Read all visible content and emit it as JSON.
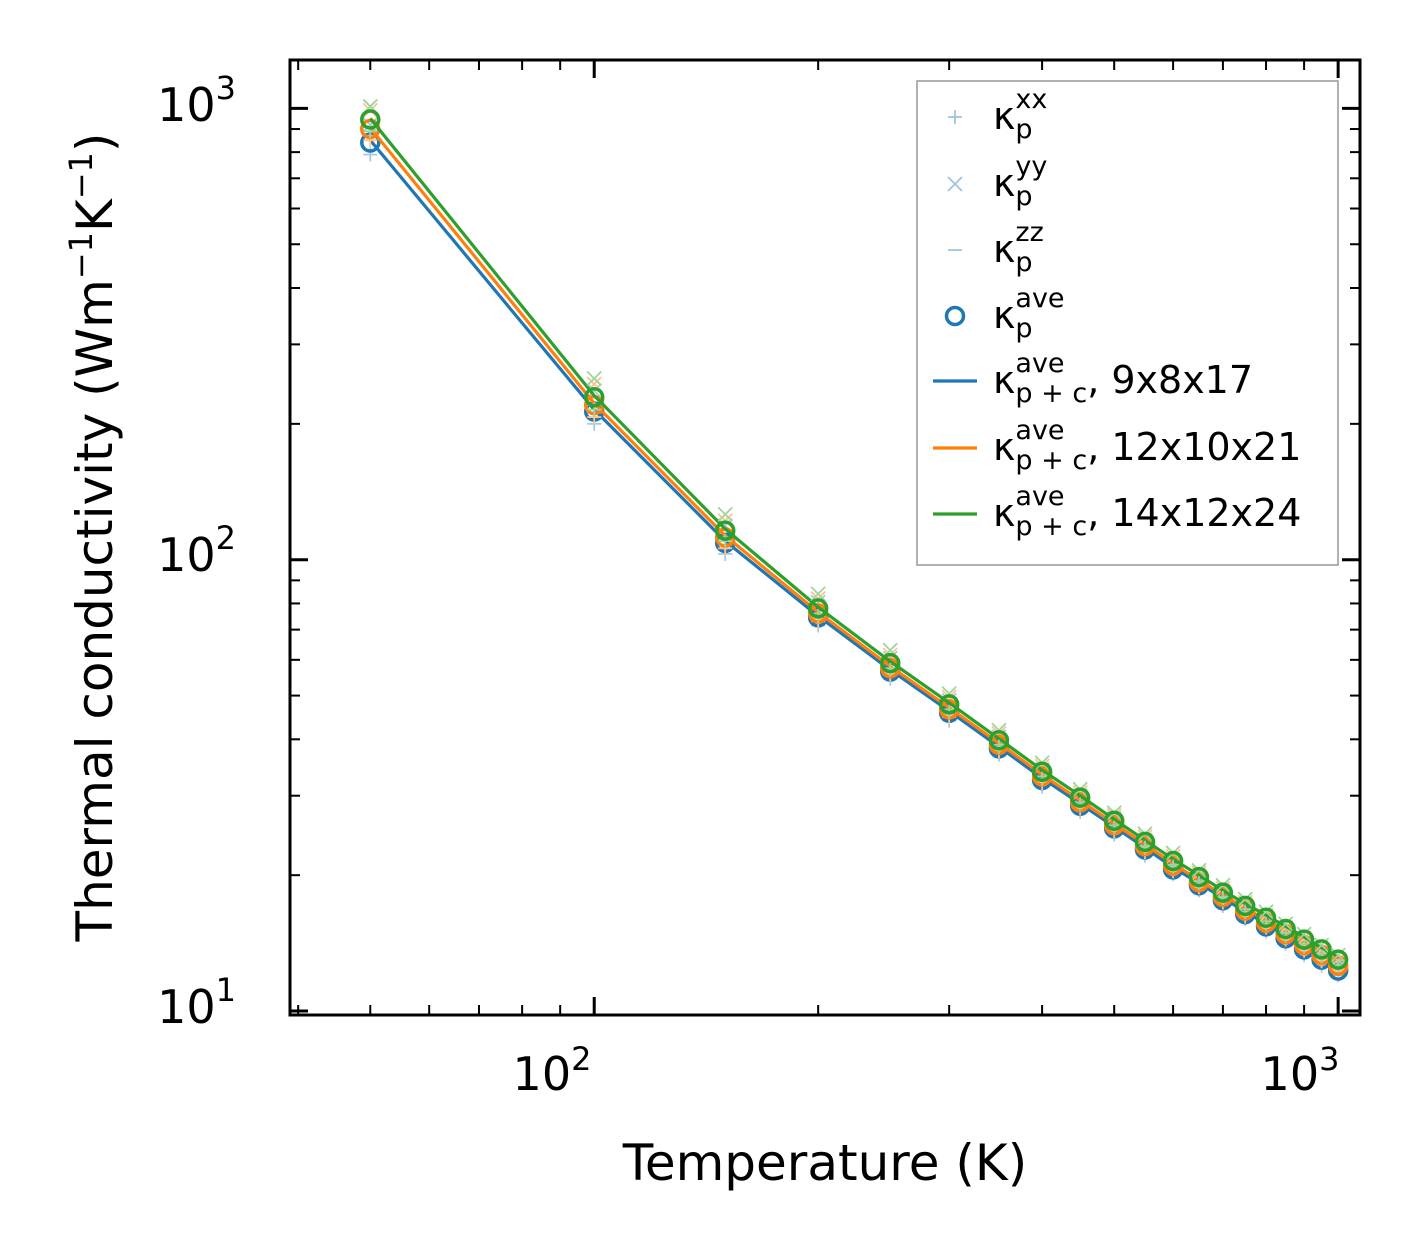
{
  "chart_data": {
    "type": "line",
    "scale": "log-log",
    "xlabel": "Temperature (K)",
    "ylabel": "Thermal conductivity (Wm⁻¹K⁻¹)",
    "ylabel_parts": {
      "base": "Thermal conductivity (Wm",
      "exp1": "−1",
      "mid": "K",
      "exp2": "−1",
      "end": ")"
    },
    "xlim": [
      39,
      1070
    ],
    "ylim": [
      9.8,
      1280
    ],
    "xticks": [
      {
        "base": "10",
        "exp": "2",
        "value": 100
      },
      {
        "base": "10",
        "exp": "3",
        "value": 1000
      }
    ],
    "yticks": [
      {
        "base": "10",
        "exp": "1",
        "value": 10
      },
      {
        "base": "10",
        "exp": "2",
        "value": 100
      },
      {
        "base": "10",
        "exp": "3",
        "value": 1000
      }
    ],
    "x": [
      50,
      100,
      150,
      200,
      250,
      300,
      350,
      400,
      450,
      500,
      550,
      600,
      650,
      700,
      750,
      800,
      850,
      900,
      950,
      1000
    ],
    "legend_position": "top-right",
    "legend": [
      {
        "kappa": "κ",
        "sub": "p",
        "sup": "xx",
        "suffix": "",
        "marker": "plus",
        "color": "#9ec4e0"
      },
      {
        "kappa": "κ",
        "sub": "p",
        "sup": "yy",
        "suffix": "",
        "marker": "x",
        "color": "#9ec4e0"
      },
      {
        "kappa": "κ",
        "sub": "p",
        "sup": "zz",
        "suffix": "",
        "marker": "hline",
        "color": "#9ec4e0"
      },
      {
        "kappa": "κ",
        "sub": "p",
        "sup": "ave",
        "suffix": "",
        "marker": "circle",
        "color": "#1f77b4"
      },
      {
        "kappa": "κ",
        "sub": "p + c",
        "sup": "ave",
        "suffix": ", 9x8x17",
        "marker": "line",
        "color": "#1f77b4"
      },
      {
        "kappa": "κ",
        "sub": "p + c",
        "sup": "ave",
        "suffix": ", 12x10x21",
        "marker": "line",
        "color": "#ff7f0e"
      },
      {
        "kappa": "κ",
        "sub": "p + c",
        "sup": "ave",
        "suffix": ", 14x12x24",
        "marker": "line",
        "color": "#2ca02c"
      }
    ],
    "series": [
      {
        "name": "9x8x17",
        "color": "#1f77b4",
        "kp_ave": [
          840,
          213,
          109,
          74.5,
          56.5,
          45.8,
          38.2,
          32.5,
          28.5,
          25.4,
          22.8,
          20.6,
          19.0,
          17.6,
          16.4,
          15.4,
          14.5,
          13.7,
          13.0,
          12.3
        ],
        "kp_xx": [
          790,
          200,
          103,
          71.5,
          54.5,
          44.0,
          37.0,
          31.4,
          27.6,
          24.6,
          22.1,
          20.1,
          18.5,
          17.1,
          16.0,
          15.0,
          14.1,
          13.3,
          12.6,
          12.0
        ],
        "kp_yy": [
          920,
          237,
          119,
          80.5,
          60.5,
          48.8,
          40.5,
          34.3,
          30.0,
          26.7,
          23.9,
          21.6,
          19.9,
          18.4,
          17.1,
          16.0,
          15.1,
          14.2,
          13.5,
          12.8
        ],
        "kp_zz": [
          810,
          205,
          105,
          72.5,
          55.0,
          44.6,
          37.4,
          31.8,
          27.9,
          24.9,
          22.4,
          20.3,
          18.7,
          17.3,
          16.2,
          15.2,
          14.3,
          13.5,
          12.8,
          12.2
        ],
        "kpc_ave": [
          850,
          215,
          110,
          75.0,
          57.0,
          46.2,
          38.5,
          32.8,
          28.8,
          25.6,
          23.0,
          20.8,
          19.2,
          17.8,
          16.6,
          15.6,
          14.7,
          13.9,
          13.2,
          12.5
        ]
      },
      {
        "name": "12x10x21",
        "color": "#ff7f0e",
        "kp_ave": [
          900,
          220,
          112,
          76.0,
          57.5,
          46.6,
          38.9,
          33.1,
          29.0,
          25.8,
          23.2,
          21.0,
          19.3,
          17.9,
          16.7,
          15.7,
          14.8,
          14.0,
          13.3,
          12.6
        ],
        "kp_xx": [
          850,
          207,
          106,
          73.0,
          55.5,
          44.8,
          37.6,
          32.0,
          28.1,
          25.0,
          22.5,
          20.4,
          18.8,
          17.4,
          16.2,
          15.3,
          14.4,
          13.6,
          12.9,
          12.3
        ],
        "kp_yy": [
          990,
          245,
          122,
          82.0,
          61.5,
          49.6,
          41.2,
          34.9,
          30.5,
          27.1,
          24.3,
          22.0,
          20.2,
          18.7,
          17.4,
          16.3,
          15.3,
          14.5,
          13.7,
          13.0
        ],
        "kp_zz": [
          870,
          212,
          108,
          74.0,
          56.0,
          45.4,
          38.0,
          32.3,
          28.3,
          25.2,
          22.7,
          20.6,
          18.9,
          17.5,
          16.4,
          15.4,
          14.5,
          13.7,
          13.0,
          12.4
        ],
        "kpc_ave": [
          905,
          222,
          113,
          76.5,
          58.0,
          47.0,
          39.2,
          33.4,
          29.3,
          26.0,
          23.4,
          21.2,
          19.5,
          18.1,
          16.9,
          15.9,
          15.0,
          14.2,
          13.5,
          12.8
        ]
      },
      {
        "name": "14x12x24",
        "color": "#2ca02c",
        "kp_ave": [
          945,
          229,
          116,
          78.0,
          59.0,
          47.8,
          39.8,
          33.9,
          29.7,
          26.4,
          23.7,
          21.5,
          19.8,
          18.3,
          17.1,
          16.1,
          15.2,
          14.4,
          13.7,
          13.0
        ],
        "kp_xx": [
          890,
          215,
          110,
          75.0,
          57.0,
          46.0,
          38.5,
          32.7,
          28.7,
          25.5,
          23.0,
          20.9,
          19.2,
          17.8,
          16.6,
          15.6,
          14.7,
          13.9,
          13.2,
          12.6
        ],
        "kp_yy": [
          1010,
          252,
          126,
          84.0,
          63.0,
          50.5,
          41.9,
          35.5,
          31.0,
          27.5,
          24.7,
          22.4,
          20.5,
          19.0,
          17.7,
          16.6,
          15.6,
          14.8,
          14.0,
          13.3
        ],
        "kp_zz": [
          910,
          220,
          112,
          76.0,
          57.5,
          46.6,
          38.9,
          33.1,
          29.0,
          25.8,
          23.2,
          21.1,
          19.4,
          17.9,
          16.8,
          15.8,
          14.9,
          14.1,
          13.4,
          12.8
        ],
        "kpc_ave": [
          950,
          231,
          117,
          78.5,
          59.5,
          48.2,
          40.1,
          34.2,
          30.0,
          26.6,
          23.9,
          21.7,
          20.0,
          18.5,
          17.3,
          16.3,
          15.4,
          14.6,
          13.8,
          13.2
        ]
      }
    ]
  }
}
